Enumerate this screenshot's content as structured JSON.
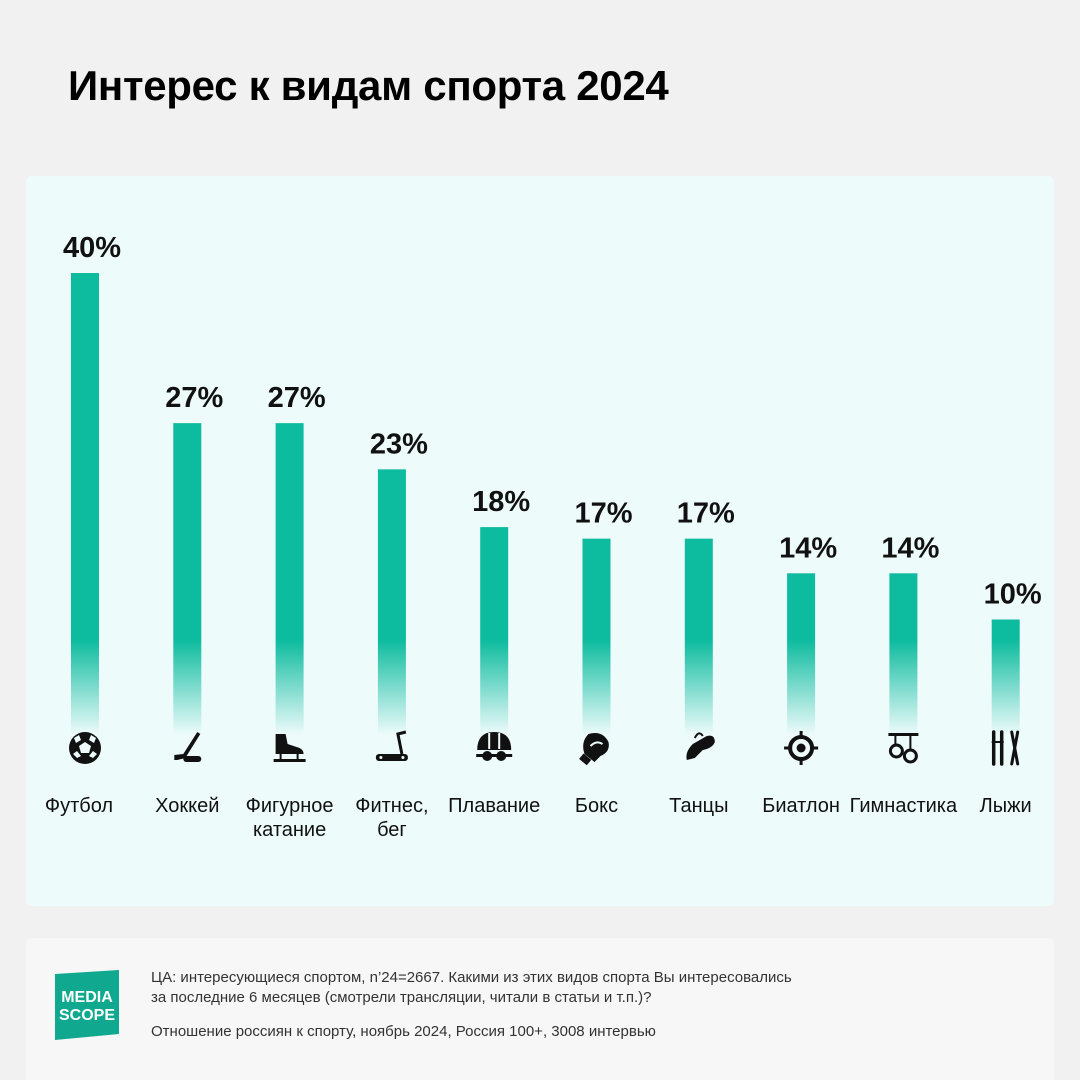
{
  "title": "Интерес к видам спорта 2024",
  "colors": {
    "bar": "#0dbb9e",
    "panel": "#eefbfb",
    "background": "#f1f1f1"
  },
  "chart_data": {
    "type": "bar",
    "title": "Интерес к видам спорта 2024",
    "categories": [
      [
        "Футбол"
      ],
      [
        "Хоккей"
      ],
      [
        "Фигурное",
        "катание"
      ],
      [
        "Фитнес,",
        "бег"
      ],
      [
        "Плавание"
      ],
      [
        "Бокс"
      ],
      [
        "Танцы"
      ],
      [
        "Биатлон"
      ],
      [
        "Гимнастика"
      ],
      [
        "Лыжи"
      ]
    ],
    "values": [
      40,
      27,
      27,
      23,
      18,
      17,
      17,
      14,
      14,
      10
    ],
    "value_labels": [
      "40%",
      "27%",
      "27%",
      "23%",
      "18%",
      "17%",
      "17%",
      "14%",
      "14%",
      "10%"
    ],
    "icons": [
      "soccer-ball-icon",
      "hockey-stick-icon",
      "figure-skate-icon",
      "treadmill-icon",
      "swim-cap-goggles-icon",
      "boxing-glove-icon",
      "dance-shoe-icon",
      "target-crosshair-icon",
      "gymnastic-rings-icon",
      "skis-poles-icon"
    ],
    "ylim": [
      0,
      40
    ],
    "grid": false,
    "legend": "none"
  },
  "footer": {
    "logo_line1": "MEDIA",
    "logo_line2": "SCOPE",
    "note_line1": "ЦА: интересующиеся спортом, n’24=2667. Какими из этих видов спорта Вы интересовались",
    "note_line2": "за последние 6 месяцев (смотрели трансляции, читали в  статьи и т.п.)?",
    "source": "Отношение россиян к спорту, ноябрь 2024, Россия 100+, 3008 интервью"
  }
}
